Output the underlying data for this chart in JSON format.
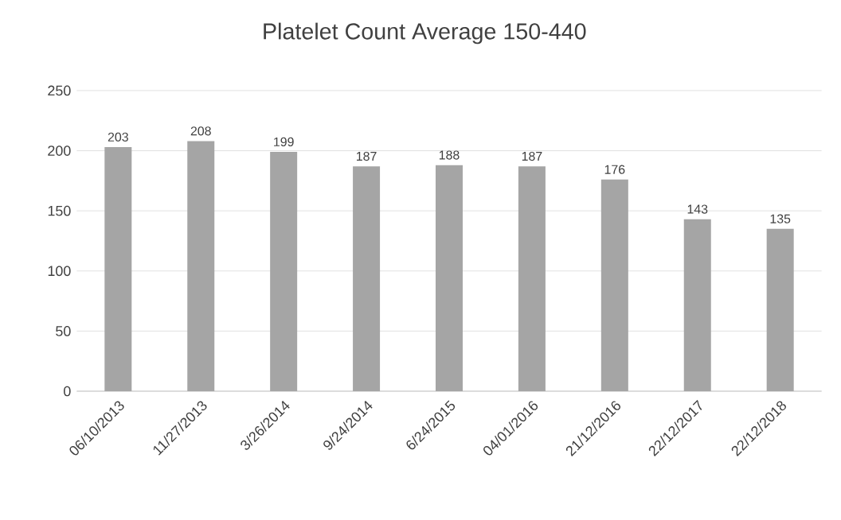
{
  "chart_data": {
    "type": "bar",
    "title": "Platelet Count Average 150-440",
    "categories": [
      "06/10/2013",
      "11/27/2013",
      "3/26/2014",
      "9/24/2014",
      "6/24/2015",
      "04/01/2016",
      "21/12/2016",
      "22/12/2017",
      "22/12/2018"
    ],
    "values": [
      203,
      208,
      199,
      187,
      188,
      187,
      176,
      143,
      135
    ],
    "color": "#a5a5a5",
    "ylim": [
      0,
      250
    ],
    "yticks": [
      0,
      50,
      100,
      150,
      200,
      250
    ],
    "grid": "y",
    "data_labels": true
  }
}
